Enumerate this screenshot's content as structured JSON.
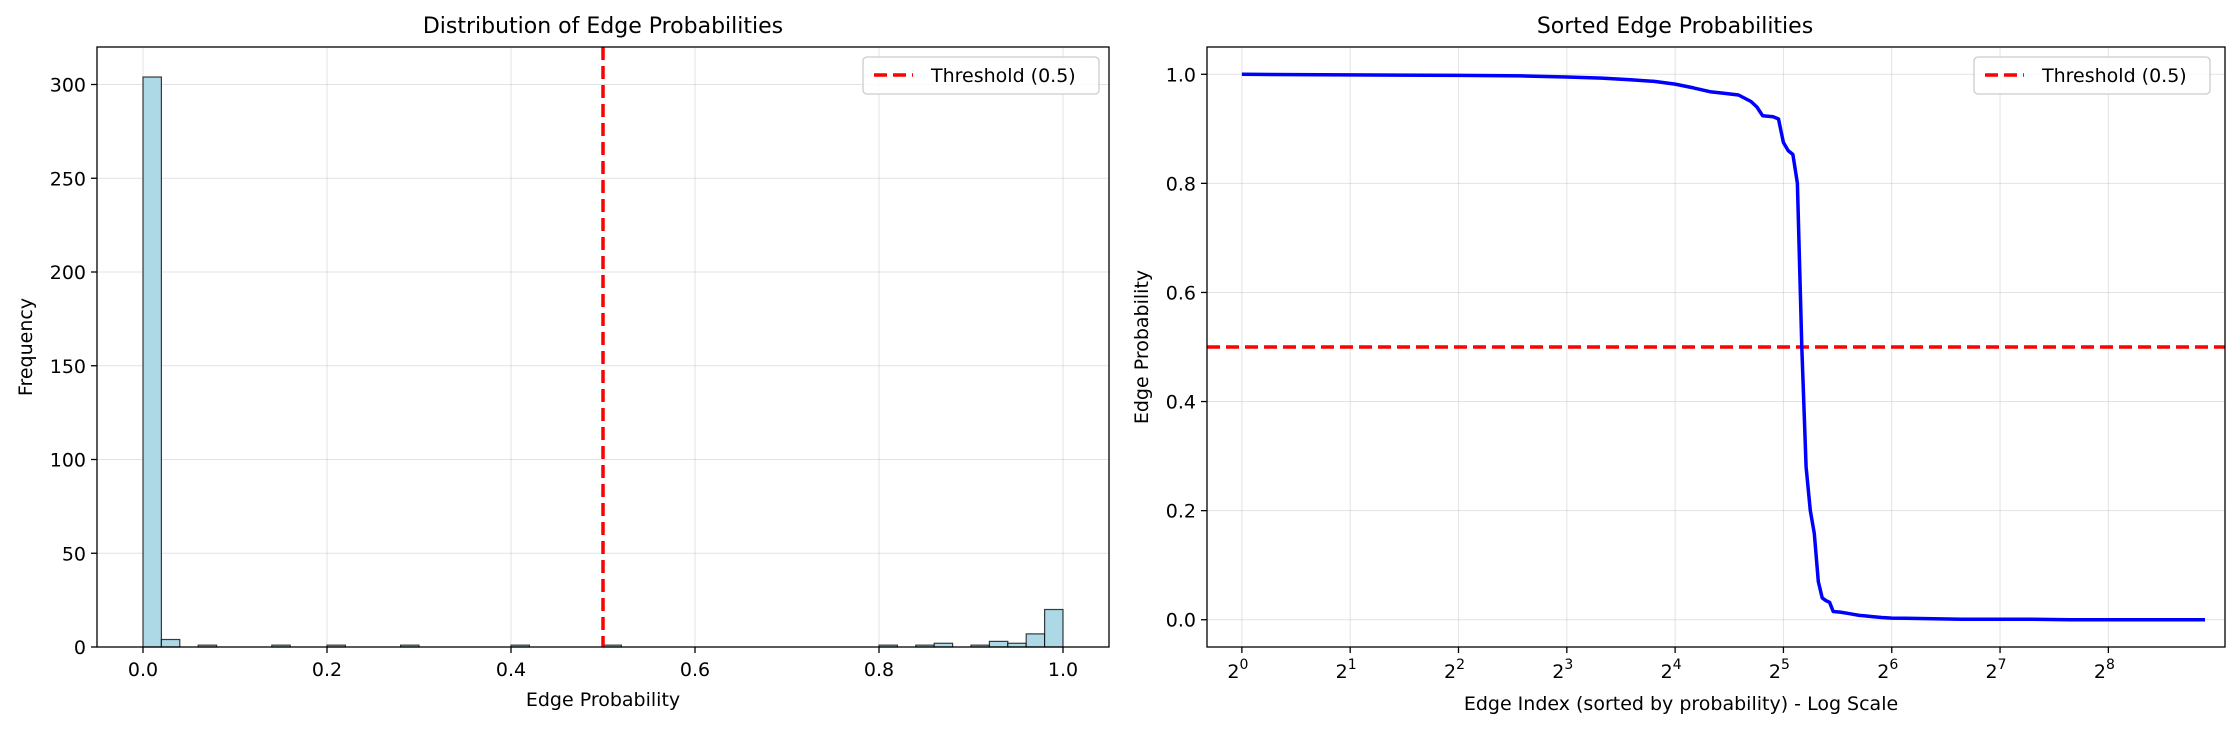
{
  "chart_data": [
    {
      "type": "bar",
      "title": "Distribution of Edge Probabilities",
      "xlabel": "Edge Probability",
      "ylabel": "Frequency",
      "xlim": [
        -0.05,
        1.05
      ],
      "ylim": [
        0,
        320
      ],
      "xticks": [
        0.0,
        0.2,
        0.4,
        0.6,
        0.8,
        1.0
      ],
      "xtick_labels": [
        "0.0",
        "0.2",
        "0.4",
        "0.6",
        "0.8",
        "1.0"
      ],
      "yticks": [
        0,
        50,
        100,
        150,
        200,
        250,
        300
      ],
      "ytick_labels": [
        "0",
        "50",
        "100",
        "150",
        "200",
        "250",
        "300"
      ],
      "grid": true,
      "legend_position": "upper right",
      "bin_width": 0.02,
      "bins": [
        {
          "start": 0.0,
          "count": 304
        },
        {
          "start": 0.02,
          "count": 4
        },
        {
          "start": 0.06,
          "count": 1
        },
        {
          "start": 0.14,
          "count": 1
        },
        {
          "start": 0.2,
          "count": 1
        },
        {
          "start": 0.28,
          "count": 1
        },
        {
          "start": 0.4,
          "count": 1
        },
        {
          "start": 0.5,
          "count": 1
        },
        {
          "start": 0.8,
          "count": 1
        },
        {
          "start": 0.84,
          "count": 1
        },
        {
          "start": 0.86,
          "count": 2
        },
        {
          "start": 0.9,
          "count": 1
        },
        {
          "start": 0.92,
          "count": 3
        },
        {
          "start": 0.94,
          "count": 2
        },
        {
          "start": 0.96,
          "count": 7
        },
        {
          "start": 0.98,
          "count": 20
        }
      ],
      "bar_color": "#add8e6",
      "threshold": {
        "value": 0.5,
        "label": "Threshold (0.5)",
        "color": "#ff0000"
      }
    },
    {
      "type": "line",
      "title": "Sorted Edge Probabilities",
      "xlabel": "Edge Index (sorted by probability) - Log Scale",
      "ylabel": "Edge Probability",
      "xscale": "log2",
      "xlim": [
        0.8,
        540
      ],
      "ylim": [
        -0.05,
        1.05
      ],
      "xtick_base": "2",
      "xtick_exponents": [
        "0",
        "1",
        "2",
        "3",
        "4",
        "5",
        "6",
        "7",
        "8"
      ],
      "yticks": [
        0.0,
        0.2,
        0.4,
        0.6,
        0.8,
        1.0
      ],
      "ytick_labels": [
        "0.0",
        "0.2",
        "0.4",
        "0.6",
        "0.8",
        "1.0"
      ],
      "grid": true,
      "legend_position": "upper right",
      "line_color": "#0000ff",
      "x": [
        1,
        4,
        6,
        8,
        10,
        12,
        14,
        16,
        18,
        20,
        22,
        24,
        26,
        27,
        28,
        29,
        30,
        31,
        32,
        33,
        34,
        35,
        36,
        37,
        38,
        39,
        40,
        41,
        42,
        43,
        44,
        46,
        48,
        50,
        52,
        54,
        56,
        60,
        64,
        80,
        100,
        150,
        200,
        250,
        300,
        350,
        400,
        475
      ],
      "y": [
        1.0,
        0.998,
        0.997,
        0.995,
        0.993,
        0.99,
        0.987,
        0.982,
        0.975,
        0.968,
        0.965,
        0.962,
        0.95,
        0.94,
        0.924,
        0.923,
        0.922,
        0.918,
        0.875,
        0.86,
        0.853,
        0.8,
        0.5,
        0.28,
        0.2,
        0.158,
        0.07,
        0.04,
        0.035,
        0.032,
        0.015,
        0.014,
        0.012,
        0.01,
        0.008,
        0.007,
        0.006,
        0.004,
        0.003,
        0.002,
        0.001,
        0.001,
        0.0,
        0.0,
        0.0,
        0.0,
        0.0,
        0.0
      ],
      "threshold": {
        "value": 0.5,
        "label": "Threshold (0.5)",
        "color": "#ff0000"
      }
    }
  ]
}
